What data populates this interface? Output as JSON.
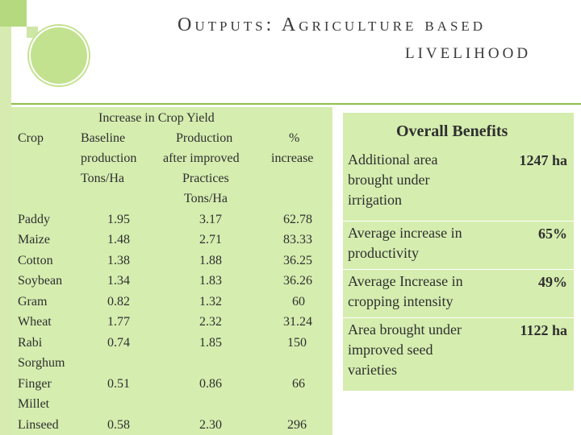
{
  "slide": {
    "title_line1": "Outputs: Agriculture based",
    "title_line2": "livelihood"
  },
  "table": {
    "header": {
      "crop": "Crop",
      "group": "Increase in Crop Yield",
      "baseline_l1": "Baseline",
      "baseline_l2": "production",
      "baseline_l3": "Tons/Ha",
      "prod_l1": "Production",
      "prod_l2": "after improved",
      "prod_l3": "Practices",
      "prod_l4": "Tons/Ha",
      "pct_l1": "%",
      "pct_l2": "increase"
    },
    "rows": [
      {
        "crop": "Paddy",
        "baseline": "1.95",
        "after": "3.17",
        "pct": "62.78"
      },
      {
        "crop": "Maize",
        "baseline": "1.48",
        "after": "2.71",
        "pct": "83.33"
      },
      {
        "crop": "Cotton",
        "baseline": "1.38",
        "after": "1.88",
        "pct": "36.25"
      },
      {
        "crop": "Soybean",
        "baseline": "1.34",
        "after": "1.83",
        "pct": "36.26"
      },
      {
        "crop": "Gram",
        "baseline": "0.82",
        "after": "1.32",
        "pct": "60"
      },
      {
        "crop": "Wheat",
        "baseline": "1.77",
        "after": "2.32",
        "pct": "31.24"
      },
      {
        "crop": "Rabi",
        "crop2": "Sorghum",
        "baseline": "0.74",
        "after": "1.85",
        "pct": "150"
      },
      {
        "crop": "Finger",
        "crop2": "Millet",
        "baseline": "0.51",
        "after": "0.86",
        "pct": "66"
      },
      {
        "crop": "Linseed",
        "baseline": "0.58",
        "after": "2.30",
        "pct": "296"
      }
    ]
  },
  "benefits": {
    "heading": "Overall Benefits",
    "items": [
      {
        "l1": "Additional area",
        "l2": "brought under",
        "l3": "irrigation",
        "value": "1247 ha"
      },
      {
        "l1": "Average increase in",
        "l2": "productivity",
        "value": "65%"
      },
      {
        "l1": "Average Increase in",
        "l2": "cropping intensity",
        "value": "49%"
      },
      {
        "l1": "Area brought under",
        "l2": "improved seed",
        "l3": "varieties",
        "value": "1122 ha"
      }
    ]
  },
  "colors": {
    "accent_green": "#b4d97e",
    "panel_green": "#d5edaf",
    "rule_green": "#8cc04a"
  }
}
